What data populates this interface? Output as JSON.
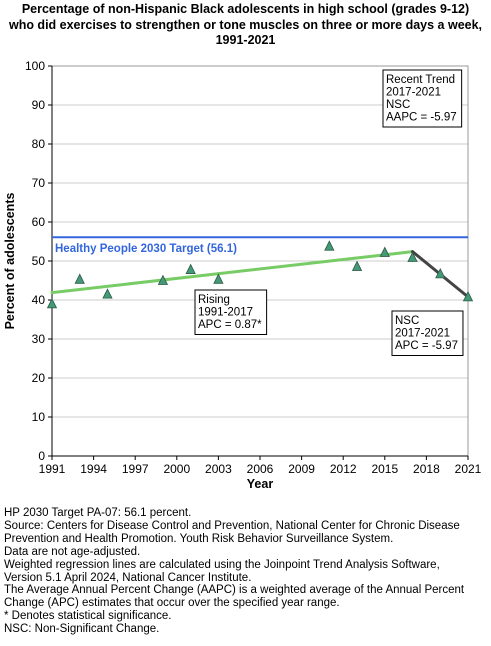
{
  "title_lines": [
    "Percentage of non-Hispanic Black adolescents in high school (grades 9-12)",
    "who did exercises to strengthen or tone muscles on three or more days a week,",
    "1991-2021"
  ],
  "chart_data": {
    "type": "scatter",
    "xlabel": "Year",
    "ylabel": "Percent of adolescents",
    "xlim": [
      1991,
      2021
    ],
    "ylim": [
      0,
      100
    ],
    "x_ticks": [
      1991,
      1994,
      1997,
      2000,
      2003,
      2006,
      2009,
      2012,
      2015,
      2018,
      2021
    ],
    "y_ticks": [
      0,
      10,
      20,
      30,
      40,
      50,
      60,
      70,
      80,
      90,
      100
    ],
    "grid": "horizontal",
    "observed": {
      "x": [
        1991,
        1993,
        1995,
        1999,
        2001,
        2003,
        2011,
        2013,
        2015,
        2017,
        2019,
        2021
      ],
      "y": [
        39.0,
        45.3,
        41.5,
        45.0,
        47.8,
        45.3,
        53.8,
        48.6,
        52.2,
        50.9,
        46.7,
        40.8
      ]
    },
    "target": {
      "value": 56.1,
      "label": "Healthy People 2030 Target (56.1)"
    },
    "segments": [
      {
        "x": [
          1991,
          2017
        ],
        "y": [
          41.9,
          52.4
        ],
        "label_lines": [
          "Rising",
          "1991-2017",
          "APC =  0.87*"
        ]
      },
      {
        "x": [
          2017,
          2021
        ],
        "y": [
          52.4,
          40.8
        ],
        "label_lines": [
          "NSC",
          "2017-2021",
          "APC = -5.97"
        ]
      }
    ],
    "recent_trend_lines": [
      "Recent Trend",
      "2017-2021",
      "NSC",
      "AAPC = -5.97"
    ],
    "colors": {
      "target": "#3366dd",
      "rising": "#77cc66",
      "falling": "#444444",
      "marker": "#449977",
      "grid": "#cccccc"
    }
  },
  "notes": [
    "HP 2030 Target PA-07: 56.1 percent.",
    "Source: Centers for Disease Control and Prevention, National Center for Chronic Disease",
    "Prevention and Health Promotion. Youth Risk Behavior Surveillance System.",
    "Data are not age-adjusted.",
    "Weighted regression lines are calculated using the Joinpoint Trend Analysis Software,",
    "Version 5.1 April 2024, National Cancer Institute.",
    "The Average Annual Percent Change (AAPC) is a weighted average of the Annual Percent",
    "Change (APC) estimates that occur over the specified year range.",
    "* Denotes statistical significance.",
    "NSC: Non-Significant Change."
  ]
}
